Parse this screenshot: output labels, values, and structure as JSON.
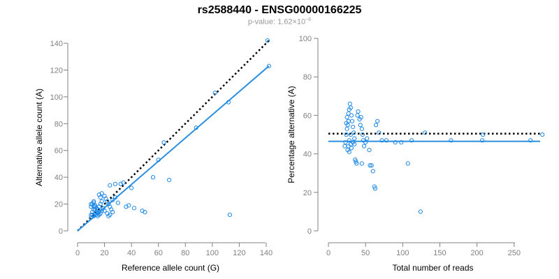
{
  "title": "rs2588440 - ENSG00000166225",
  "subtitle": {
    "prefix": "p-value: 1.62×10",
    "exponent": "−6"
  },
  "colors": {
    "points": "#1f88e5",
    "fit": "#2a8fe0",
    "reference": "#000000",
    "axis": "#808080"
  },
  "chart_data": [
    {
      "type": "scatter",
      "xlabel": "Reference allele count (G)",
      "ylabel": "Alternative allele count (A)",
      "xlim": [
        0,
        140
      ],
      "ylim": [
        0,
        140
      ],
      "xticks": [
        0,
        20,
        40,
        60,
        80,
        100,
        120,
        140
      ],
      "yticks": [
        0,
        20,
        40,
        60,
        80,
        100,
        120,
        140
      ],
      "fit_line": {
        "x": [
          0,
          142
        ],
        "y": [
          0,
          123
        ]
      },
      "reference_line": {
        "x": [
          0,
          142
        ],
        "y": [
          0,
          142
        ]
      },
      "points": [
        [
          10,
          10
        ],
        [
          10,
          12
        ],
        [
          11,
          14
        ],
        [
          12,
          16
        ],
        [
          10,
          18
        ],
        [
          11,
          20
        ],
        [
          12,
          22
        ],
        [
          13,
          18
        ],
        [
          14,
          14
        ],
        [
          12,
          11
        ],
        [
          11,
          12
        ],
        [
          13,
          13
        ],
        [
          14,
          12
        ],
        [
          15,
          11
        ],
        [
          16,
          14
        ],
        [
          15,
          16
        ],
        [
          16,
          18
        ],
        [
          17,
          20
        ],
        [
          18,
          22
        ],
        [
          17,
          25
        ],
        [
          16,
          27
        ],
        [
          18,
          28
        ],
        [
          20,
          26
        ],
        [
          21,
          24
        ],
        [
          22,
          22
        ],
        [
          23,
          20
        ],
        [
          24,
          18
        ],
        [
          25,
          16
        ],
        [
          26,
          14
        ],
        [
          24,
          12
        ],
        [
          23,
          11
        ],
        [
          22,
          13
        ],
        [
          20,
          15
        ],
        [
          19,
          17
        ],
        [
          18,
          15
        ],
        [
          17,
          13
        ],
        [
          16,
          12
        ],
        [
          15,
          13
        ],
        [
          14,
          17
        ],
        [
          13,
          19
        ],
        [
          12,
          21
        ],
        [
          10,
          20
        ],
        [
          12,
          18
        ],
        [
          13,
          16
        ],
        [
          24,
          34
        ],
        [
          26,
          23
        ],
        [
          28,
          25
        ],
        [
          30,
          21
        ],
        [
          32,
          35
        ],
        [
          28,
          35
        ],
        [
          34,
          36
        ],
        [
          36,
          18
        ],
        [
          38,
          19
        ],
        [
          40,
          32
        ],
        [
          42,
          17
        ],
        [
          48,
          15
        ],
        [
          50,
          14
        ],
        [
          56,
          40
        ],
        [
          60,
          53
        ],
        [
          64,
          66
        ],
        [
          68,
          38
        ],
        [
          88,
          77
        ],
        [
          102,
          103
        ],
        [
          112,
          96
        ],
        [
          113,
          12
        ],
        [
          141,
          142
        ],
        [
          142,
          123
        ]
      ]
    },
    {
      "type": "scatter",
      "xlabel": "Total number of reads",
      "ylabel": "Percentage alternative (A)",
      "xlim": [
        0,
        285
      ],
      "ylim": [
        0,
        100
      ],
      "xticks": [
        0,
        50,
        100,
        150,
        200,
        250
      ],
      "yticks": [
        0,
        20,
        40,
        60,
        80,
        100
      ],
      "fit_line": {
        "x": [
          0,
          285
        ],
        "y": [
          46.5,
          46.5
        ]
      },
      "reference_line": {
        "x": [
          0,
          285
        ],
        "y": [
          50.5,
          50.5
        ]
      },
      "points": [
        [
          22,
          44
        ],
        [
          23,
          46
        ],
        [
          24,
          50
        ],
        [
          25,
          53
        ],
        [
          24,
          56
        ],
        [
          25,
          59
        ],
        [
          26,
          55
        ],
        [
          27,
          57
        ],
        [
          27,
          61
        ],
        [
          28,
          63
        ],
        [
          29,
          66
        ],
        [
          30,
          64
        ],
        [
          31,
          60
        ],
        [
          32,
          57
        ],
        [
          33,
          54
        ],
        [
          34,
          51
        ],
        [
          35,
          48
        ],
        [
          28,
          47
        ],
        [
          27,
          44
        ],
        [
          26,
          42
        ],
        [
          28,
          41
        ],
        [
          30,
          45
        ],
        [
          31,
          43
        ],
        [
          33,
          46
        ],
        [
          30,
          50
        ],
        [
          35,
          45
        ],
        [
          36,
          37
        ],
        [
          37,
          36
        ],
        [
          38,
          35
        ],
        [
          39,
          60
        ],
        [
          40,
          62
        ],
        [
          42,
          58
        ],
        [
          43,
          55
        ],
        [
          44,
          59
        ],
        [
          45,
          53
        ],
        [
          46,
          50
        ],
        [
          47,
          47
        ],
        [
          48,
          44
        ],
        [
          45,
          35
        ],
        [
          50,
          46
        ],
        [
          52,
          48
        ],
        [
          55,
          42
        ],
        [
          56,
          34
        ],
        [
          58,
          34
        ],
        [
          60,
          31
        ],
        [
          62,
          23
        ],
        [
          63,
          22
        ],
        [
          64,
          55
        ],
        [
          66,
          57
        ],
        [
          68,
          51
        ],
        [
          72,
          47
        ],
        [
          78,
          47
        ],
        [
          90,
          46
        ],
        [
          98,
          46
        ],
        [
          107,
          35
        ],
        [
          112,
          47
        ],
        [
          124,
          10
        ],
        [
          130,
          51
        ],
        [
          165,
          47
        ],
        [
          207,
          47
        ],
        [
          208,
          50
        ],
        [
          272,
          47
        ],
        [
          288,
          50
        ]
      ]
    }
  ]
}
